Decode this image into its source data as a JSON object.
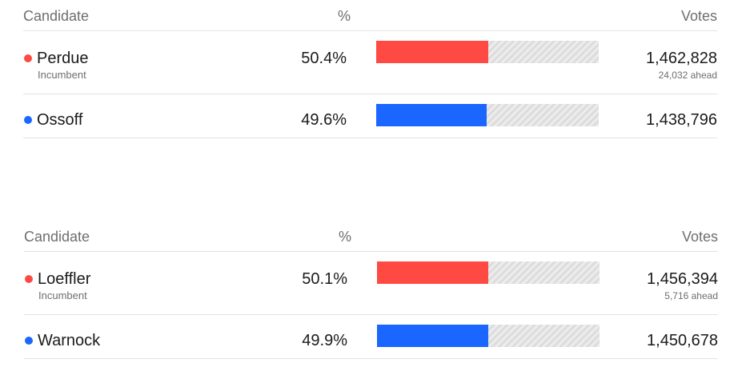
{
  "colors": {
    "republican": "#ff4a44",
    "democrat": "#1a66ff"
  },
  "races": [
    {
      "headers": {
        "candidate": "Candidate",
        "pct": "%",
        "votes": "Votes"
      },
      "candidates": [
        {
          "name": "Perdue",
          "party": "republican",
          "sub": "Incumbent",
          "pct": "50.4%",
          "pct_value": 50.4,
          "votes": "1,462,828",
          "ahead": "24,032 ahead"
        },
        {
          "name": "Ossoff",
          "party": "democrat",
          "pct": "49.6%",
          "pct_value": 49.6,
          "votes": "1,438,796"
        }
      ]
    },
    {
      "headers": {
        "candidate": "Candidate",
        "pct": "%",
        "votes": "Votes"
      },
      "candidates": [
        {
          "name": "Loeffler",
          "party": "republican",
          "sub": "Incumbent",
          "pct": "50.1%",
          "pct_value": 50.1,
          "votes": "1,456,394",
          "ahead": "5,716 ahead"
        },
        {
          "name": "Warnock",
          "party": "democrat",
          "pct": "49.9%",
          "pct_value": 49.9,
          "votes": "1,450,678"
        }
      ]
    }
  ]
}
